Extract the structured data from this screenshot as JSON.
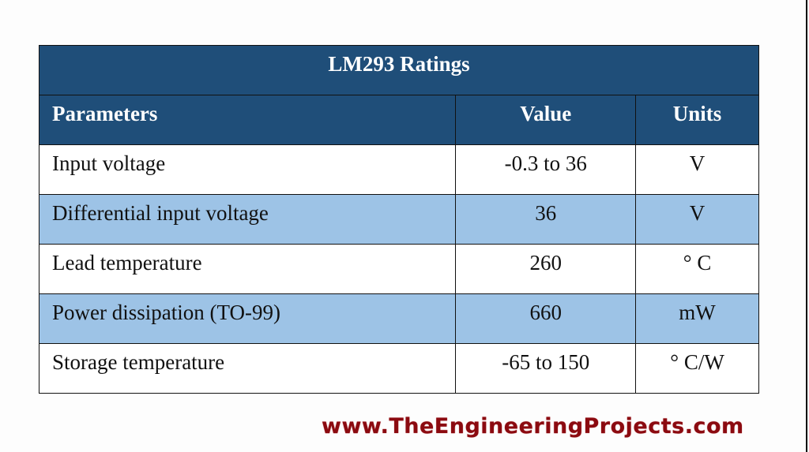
{
  "table": {
    "title": "LM293 Ratings",
    "headers": [
      "Parameters",
      "Value",
      "Units"
    ],
    "rows": [
      {
        "parameter": "Input voltage",
        "value": "-0.3 to 36",
        "units": "V"
      },
      {
        "parameter": "Differential input voltage",
        "value": "36",
        "units": "V"
      },
      {
        "parameter": "Lead temperature",
        "value": "260",
        "units": "° C"
      },
      {
        "parameter": "Power dissipation (TO-99)",
        "value": "660",
        "units": "mW"
      },
      {
        "parameter": "Storage temperature",
        "value": "-65 to 150",
        "units": "° C/W"
      }
    ]
  },
  "footer": {
    "website": "www.TheEngineeringProjects.com"
  },
  "colors": {
    "header_bg": "#1f4e79",
    "alt_row_bg": "#9dc3e6",
    "footer_text": "#8b0a10"
  }
}
